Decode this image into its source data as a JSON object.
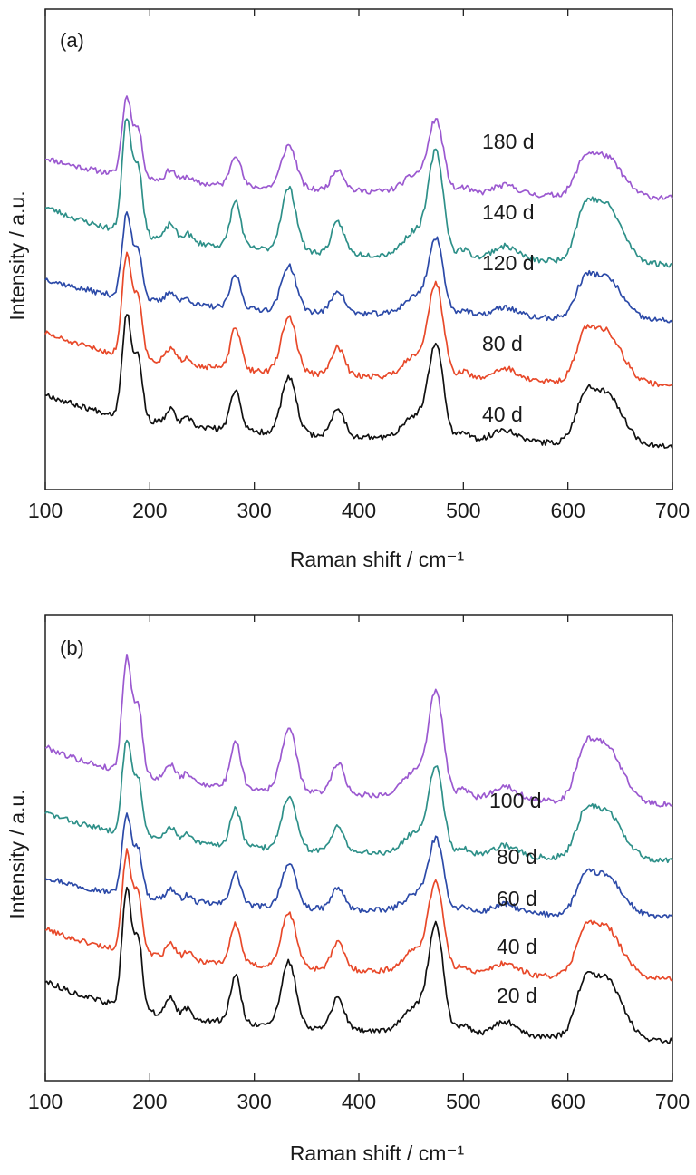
{
  "chart_data": [
    {
      "type": "line",
      "panel_label": "(a)",
      "xlabel": "Raman shift / cm⁻¹",
      "ylabel": "Intensity / a.u.",
      "xlim": [
        100,
        700
      ],
      "xticks": [
        100,
        200,
        300,
        400,
        500,
        600,
        700
      ],
      "yticks_shown": false,
      "grid": false,
      "peaks_cm-1": [
        178,
        189,
        220,
        282,
        333,
        380,
        474,
        630
      ],
      "series": [
        {
          "name": "180 d",
          "color": "#9b59d0",
          "offset": 4,
          "amplitude": 1.0,
          "noise_seed": 11
        },
        {
          "name": "140 d",
          "color": "#2e9089",
          "offset": 3,
          "amplitude": 1.45,
          "noise_seed": 23
        },
        {
          "name": "120 d",
          "color": "#2c4aa8",
          "offset": 2,
          "amplitude": 1.05,
          "noise_seed": 37
        },
        {
          "name": "80 d",
          "color": "#e8492a",
          "offset": 1,
          "amplitude": 1.3,
          "noise_seed": 51
        },
        {
          "name": "40 d",
          "color": "#111111",
          "offset": 0,
          "amplitude": 1.3,
          "noise_seed": 67
        }
      ]
    },
    {
      "type": "line",
      "panel_label": "(b)",
      "xlabel": "Raman shift / cm⁻¹",
      "ylabel": "Intensity / a.u.",
      "xlim": [
        100,
        700
      ],
      "xticks": [
        100,
        200,
        300,
        400,
        500,
        600,
        700
      ],
      "yticks_shown": false,
      "grid": false,
      "peaks_cm-1": [
        178,
        189,
        220,
        282,
        333,
        380,
        474,
        630
      ],
      "series": [
        {
          "name": "100 d",
          "color": "#9b59d0",
          "offset": 4,
          "amplitude": 1.45,
          "noise_seed": 79
        },
        {
          "name": "80 d",
          "color": "#2e9089",
          "offset": 3,
          "amplitude": 1.2,
          "noise_seed": 83
        },
        {
          "name": "60 d",
          "color": "#2c4aa8",
          "offset": 2,
          "amplitude": 1.0,
          "noise_seed": 97
        },
        {
          "name": "40 d",
          "color": "#e8492a",
          "offset": 1,
          "amplitude": 1.25,
          "noise_seed": 101
        },
        {
          "name": "20 d",
          "color": "#111111",
          "offset": 0,
          "amplitude": 1.5,
          "noise_seed": 113
        }
      ]
    }
  ]
}
